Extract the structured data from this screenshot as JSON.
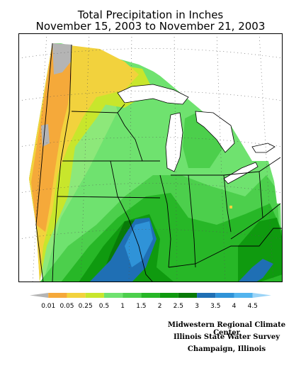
{
  "title_line1": "Total Precipitation in Inches",
  "title_line2": "November 15, 2003 to November 21, 2003",
  "legend": {
    "labels": [
      "0.01",
      "0.05",
      "0.25",
      "0.5",
      "1",
      "1.5",
      "2",
      "2.5",
      "3",
      "3.5",
      "4",
      "4.5"
    ],
    "colors": [
      "#b4b4b4",
      "#f5a93a",
      "#f2d23d",
      "#c8e62c",
      "#6fe26f",
      "#4ccf4c",
      "#27b727",
      "#0f9a0f",
      "#087a08",
      "#1f6fb4",
      "#2f93d8",
      "#52b4ee",
      "#9bd4f7"
    ]
  },
  "credits": [
    "Midwestern Regional Climate Center",
    "Illinois State Water Survey",
    "Champaign, Illinois"
  ]
}
